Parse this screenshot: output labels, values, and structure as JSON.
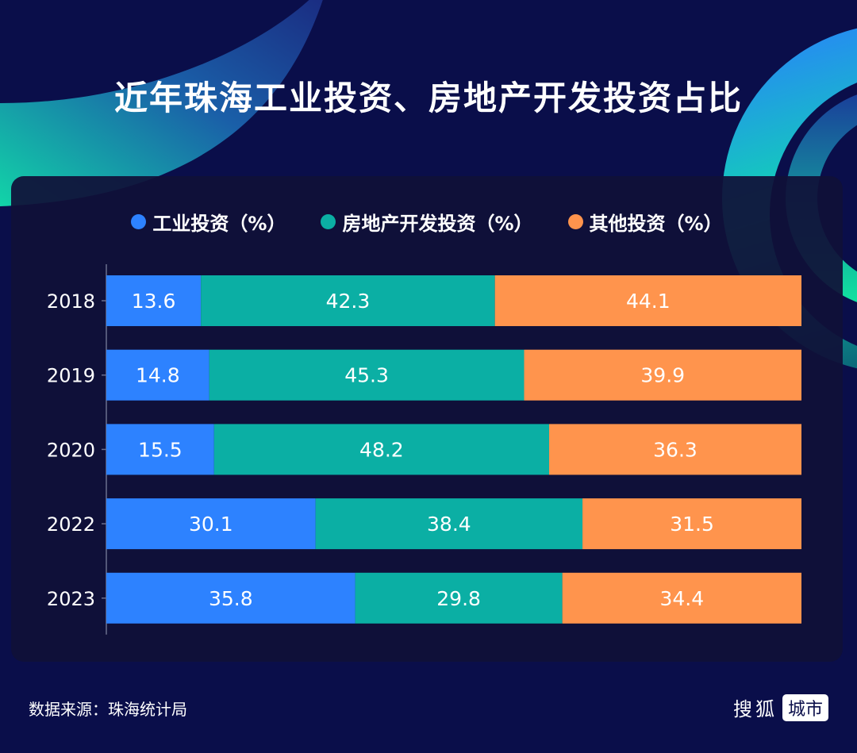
{
  "title": "近年珠海工业投资、房地产开发投资占比",
  "footer": {
    "source": "数据来源：珠海统计局",
    "brand_main": "搜狐",
    "brand_badge": "城市"
  },
  "colors": {
    "background": "#0a0e4a",
    "panel": "#101038",
    "industrial": "#2d82ff",
    "real_estate": "#0bafa4",
    "other": "#ff944d",
    "label_text": "#ffffff"
  },
  "chart_data": {
    "type": "bar",
    "orientation": "horizontal",
    "stacked": true,
    "title": "近年珠海工业投资、房地产开发投资占比",
    "xlabel": "",
    "ylabel": "",
    "xlim": [
      0,
      100
    ],
    "grid": false,
    "legend_position": "top-center",
    "categories": [
      "2018",
      "2019",
      "2020",
      "2022",
      "2023"
    ],
    "series": [
      {
        "name": "工业投资（%）",
        "color": "#2d82ff",
        "values": [
          13.6,
          14.8,
          15.5,
          30.1,
          35.8
        ]
      },
      {
        "name": "房地产开发投资（%）",
        "color": "#0bafa4",
        "values": [
          42.3,
          45.3,
          48.2,
          38.4,
          29.8
        ]
      },
      {
        "name": "其他投资（%）",
        "color": "#ff944d",
        "values": [
          44.1,
          39.9,
          36.3,
          31.5,
          34.4
        ]
      }
    ]
  }
}
